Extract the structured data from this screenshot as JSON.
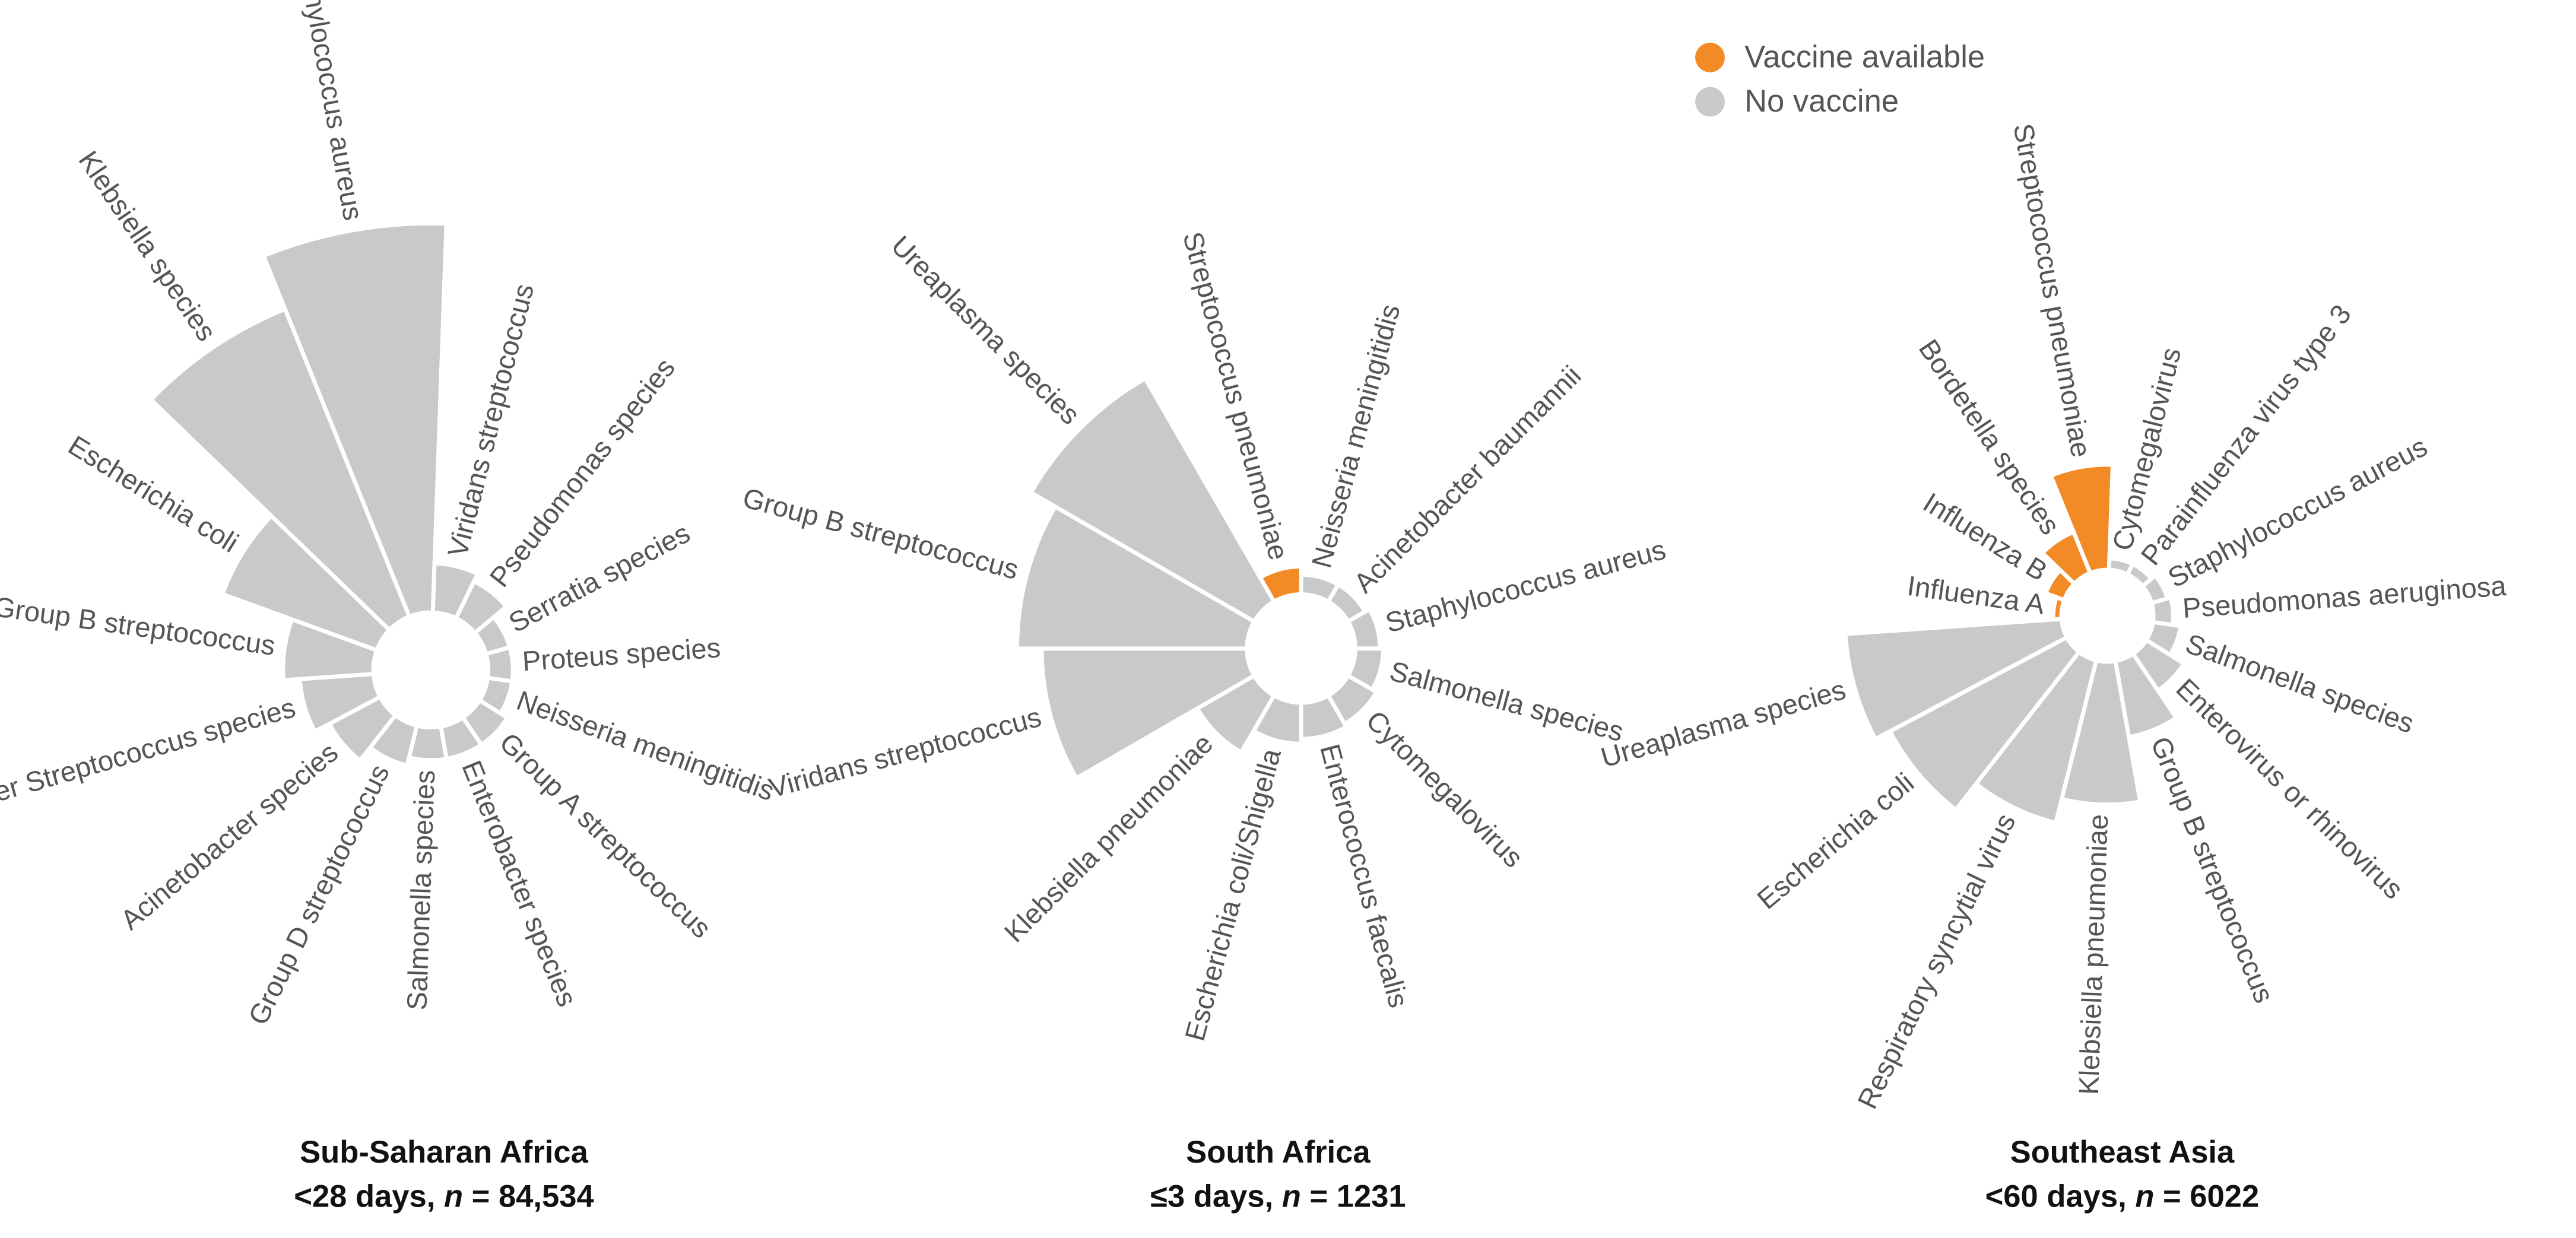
{
  "legend": [
    {
      "name": "Vaccine available",
      "color": "#f28a26"
    },
    {
      "name": "No vaccine",
      "color": "#c9c9c9"
    }
  ],
  "chart_data": [
    {
      "type": "radial-bar",
      "title": "Sub-Saharan Africa",
      "subtitle": [
        "<28 days, ",
        "n",
        " = 84,534"
      ],
      "categories": [
        "Staphylococcus aureus",
        "Viridans streptococcus",
        "Pseudomonas species",
        "Serratia species",
        "Proteus species",
        "Neisseria meningitidis",
        "Group A streptococcus",
        "Enterobacter species",
        "Salmonella species",
        "Group D streptococcus",
        "Acinetobacter species",
        "Other Streptococcus species",
        "Group B streptococcus",
        "Escherichia coli",
        "Klebsiella species"
      ],
      "values": [
        237,
        30,
        25,
        15,
        15,
        15,
        20,
        20,
        20,
        25,
        35,
        45,
        55,
        100,
        202
      ],
      "colors": [
        "#c9c9c9",
        "#c9c9c9",
        "#c9c9c9",
        "#c9c9c9",
        "#c9c9c9",
        "#c9c9c9",
        "#c9c9c9",
        "#c9c9c9",
        "#c9c9c9",
        "#c9c9c9",
        "#c9c9c9",
        "#c9c9c9",
        "#c9c9c9",
        "#c9c9c9",
        "#c9c9c9"
      ]
    },
    {
      "type": "radial-bar",
      "title": "South Africa",
      "subtitle": [
        "≤3 days, ",
        "n",
        " = 1231"
      ],
      "categories": [
        "Streptococcus pneumoniae",
        "Neisseria meningitidis",
        "Acinetobacter baumannii",
        "Staphylococcus aureus",
        "Salmonella species",
        "Cytomegalovirus",
        "Enterococcus faecalis",
        "Escherichia coli/Shigella",
        "Klebsiella pneumoniae",
        "Viridans streptococcus",
        "Group B streptococcus",
        "Ureaplasma species"
      ],
      "values": [
        17,
        12,
        12,
        15,
        17,
        20,
        22,
        25,
        40,
        125,
        140,
        157
      ],
      "colors": [
        "#f28a26",
        "#c9c9c9",
        "#c9c9c9",
        "#c9c9c9",
        "#c9c9c9",
        "#c9c9c9",
        "#c9c9c9",
        "#c9c9c9",
        "#c9c9c9",
        "#c9c9c9",
        "#c9c9c9",
        "#c9c9c9"
      ]
    },
    {
      "type": "radial-bar",
      "title": "Southeast Asia",
      "subtitle": [
        "<60 days, ",
        "n",
        " = 6022"
      ],
      "categories": [
        "Streptococcus pneumoniae",
        "Cytomegalovirus",
        "Parainfluenza virus type 3",
        "Staphylococcus aureus",
        "Pseudomonas aeruginosa",
        "Salmonella species",
        "Enterovirus or rhinovirus",
        "Group B streptococcus",
        "Klebsiella pneumoniae",
        "Respiratory syncytial virus",
        "Escherichia coli",
        "Ureaplasma species",
        "Influenza A",
        "Influenza B",
        "Bordetella species"
      ],
      "values": [
        64,
        7,
        7,
        10,
        12,
        17,
        27,
        47,
        87,
        102,
        122,
        132,
        5,
        12,
        27
      ],
      "colors": [
        "#f28a26",
        "#c9c9c9",
        "#c9c9c9",
        "#c9c9c9",
        "#c9c9c9",
        "#c9c9c9",
        "#c9c9c9",
        "#c9c9c9",
        "#c9c9c9",
        "#c9c9c9",
        "#c9c9c9",
        "#c9c9c9",
        "#f28a26",
        "#f28a26",
        "#f28a26"
      ]
    }
  ]
}
